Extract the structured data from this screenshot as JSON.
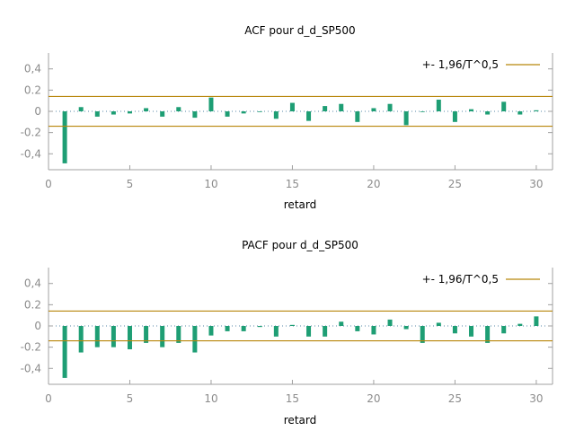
{
  "colors": {
    "bar": "#1e9e74",
    "band": "#b8860b",
    "axis": "#a0a0a0",
    "tick_text": "#8c8c8c",
    "zero_line": "#5a88a8"
  },
  "chart_data": [
    {
      "type": "bar",
      "title": "ACF pour d_d_SP500",
      "xlabel": "retard",
      "legend": "+- 1,96/T^0,5",
      "legend_position": "top-right",
      "band": 0.14,
      "xlim": [
        0,
        31
      ],
      "ylim": [
        -0.55,
        0.55
      ],
      "xticks": [
        0,
        5,
        10,
        15,
        20,
        25,
        30
      ],
      "yticks": [
        0.4,
        0.2,
        0,
        -0.2,
        -0.4
      ],
      "ytick_labels": [
        "0,4",
        "0.2",
        "0",
        "-0.2",
        "-0,4"
      ],
      "x": [
        1,
        2,
        3,
        4,
        5,
        6,
        7,
        8,
        9,
        10,
        11,
        12,
        13,
        14,
        15,
        16,
        17,
        18,
        19,
        20,
        21,
        22,
        23,
        24,
        25,
        26,
        27,
        28,
        29,
        30
      ],
      "values": [
        -0.49,
        0.04,
        -0.05,
        -0.03,
        -0.02,
        0.03,
        -0.05,
        0.04,
        -0.06,
        0.13,
        -0.05,
        -0.02,
        0.0,
        -0.07,
        0.08,
        -0.09,
        0.05,
        0.07,
        -0.1,
        0.03,
        0.07,
        -0.13,
        0.0,
        0.11,
        -0.1,
        0.02,
        -0.03,
        0.09,
        -0.03,
        0.01
      ]
    },
    {
      "type": "bar",
      "title": "PACF pour d_d_SP500",
      "xlabel": "retard",
      "legend": "+- 1,96/T^0,5",
      "legend_position": "top-right",
      "band": 0.14,
      "xlim": [
        0,
        31
      ],
      "ylim": [
        -0.55,
        0.55
      ],
      "xticks": [
        0,
        5,
        10,
        15,
        20,
        25,
        30
      ],
      "yticks": [
        0.4,
        0.2,
        0,
        -0.2,
        -0.4
      ],
      "ytick_labels": [
        "0,4",
        "0.2",
        "0",
        "-0.2",
        "-0,4"
      ],
      "x": [
        1,
        2,
        3,
        4,
        5,
        6,
        7,
        8,
        9,
        10,
        11,
        12,
        13,
        14,
        15,
        16,
        17,
        18,
        19,
        20,
        21,
        22,
        23,
        24,
        25,
        26,
        27,
        28,
        29,
        30
      ],
      "values": [
        -0.49,
        -0.25,
        -0.2,
        -0.2,
        -0.22,
        -0.16,
        -0.2,
        -0.16,
        -0.25,
        -0.09,
        -0.05,
        -0.05,
        -0.01,
        -0.1,
        0.01,
        -0.1,
        -0.1,
        0.04,
        -0.05,
        -0.08,
        0.06,
        -0.03,
        -0.16,
        0.03,
        -0.07,
        -0.1,
        -0.16,
        -0.07,
        0.02,
        0.09
      ]
    }
  ]
}
